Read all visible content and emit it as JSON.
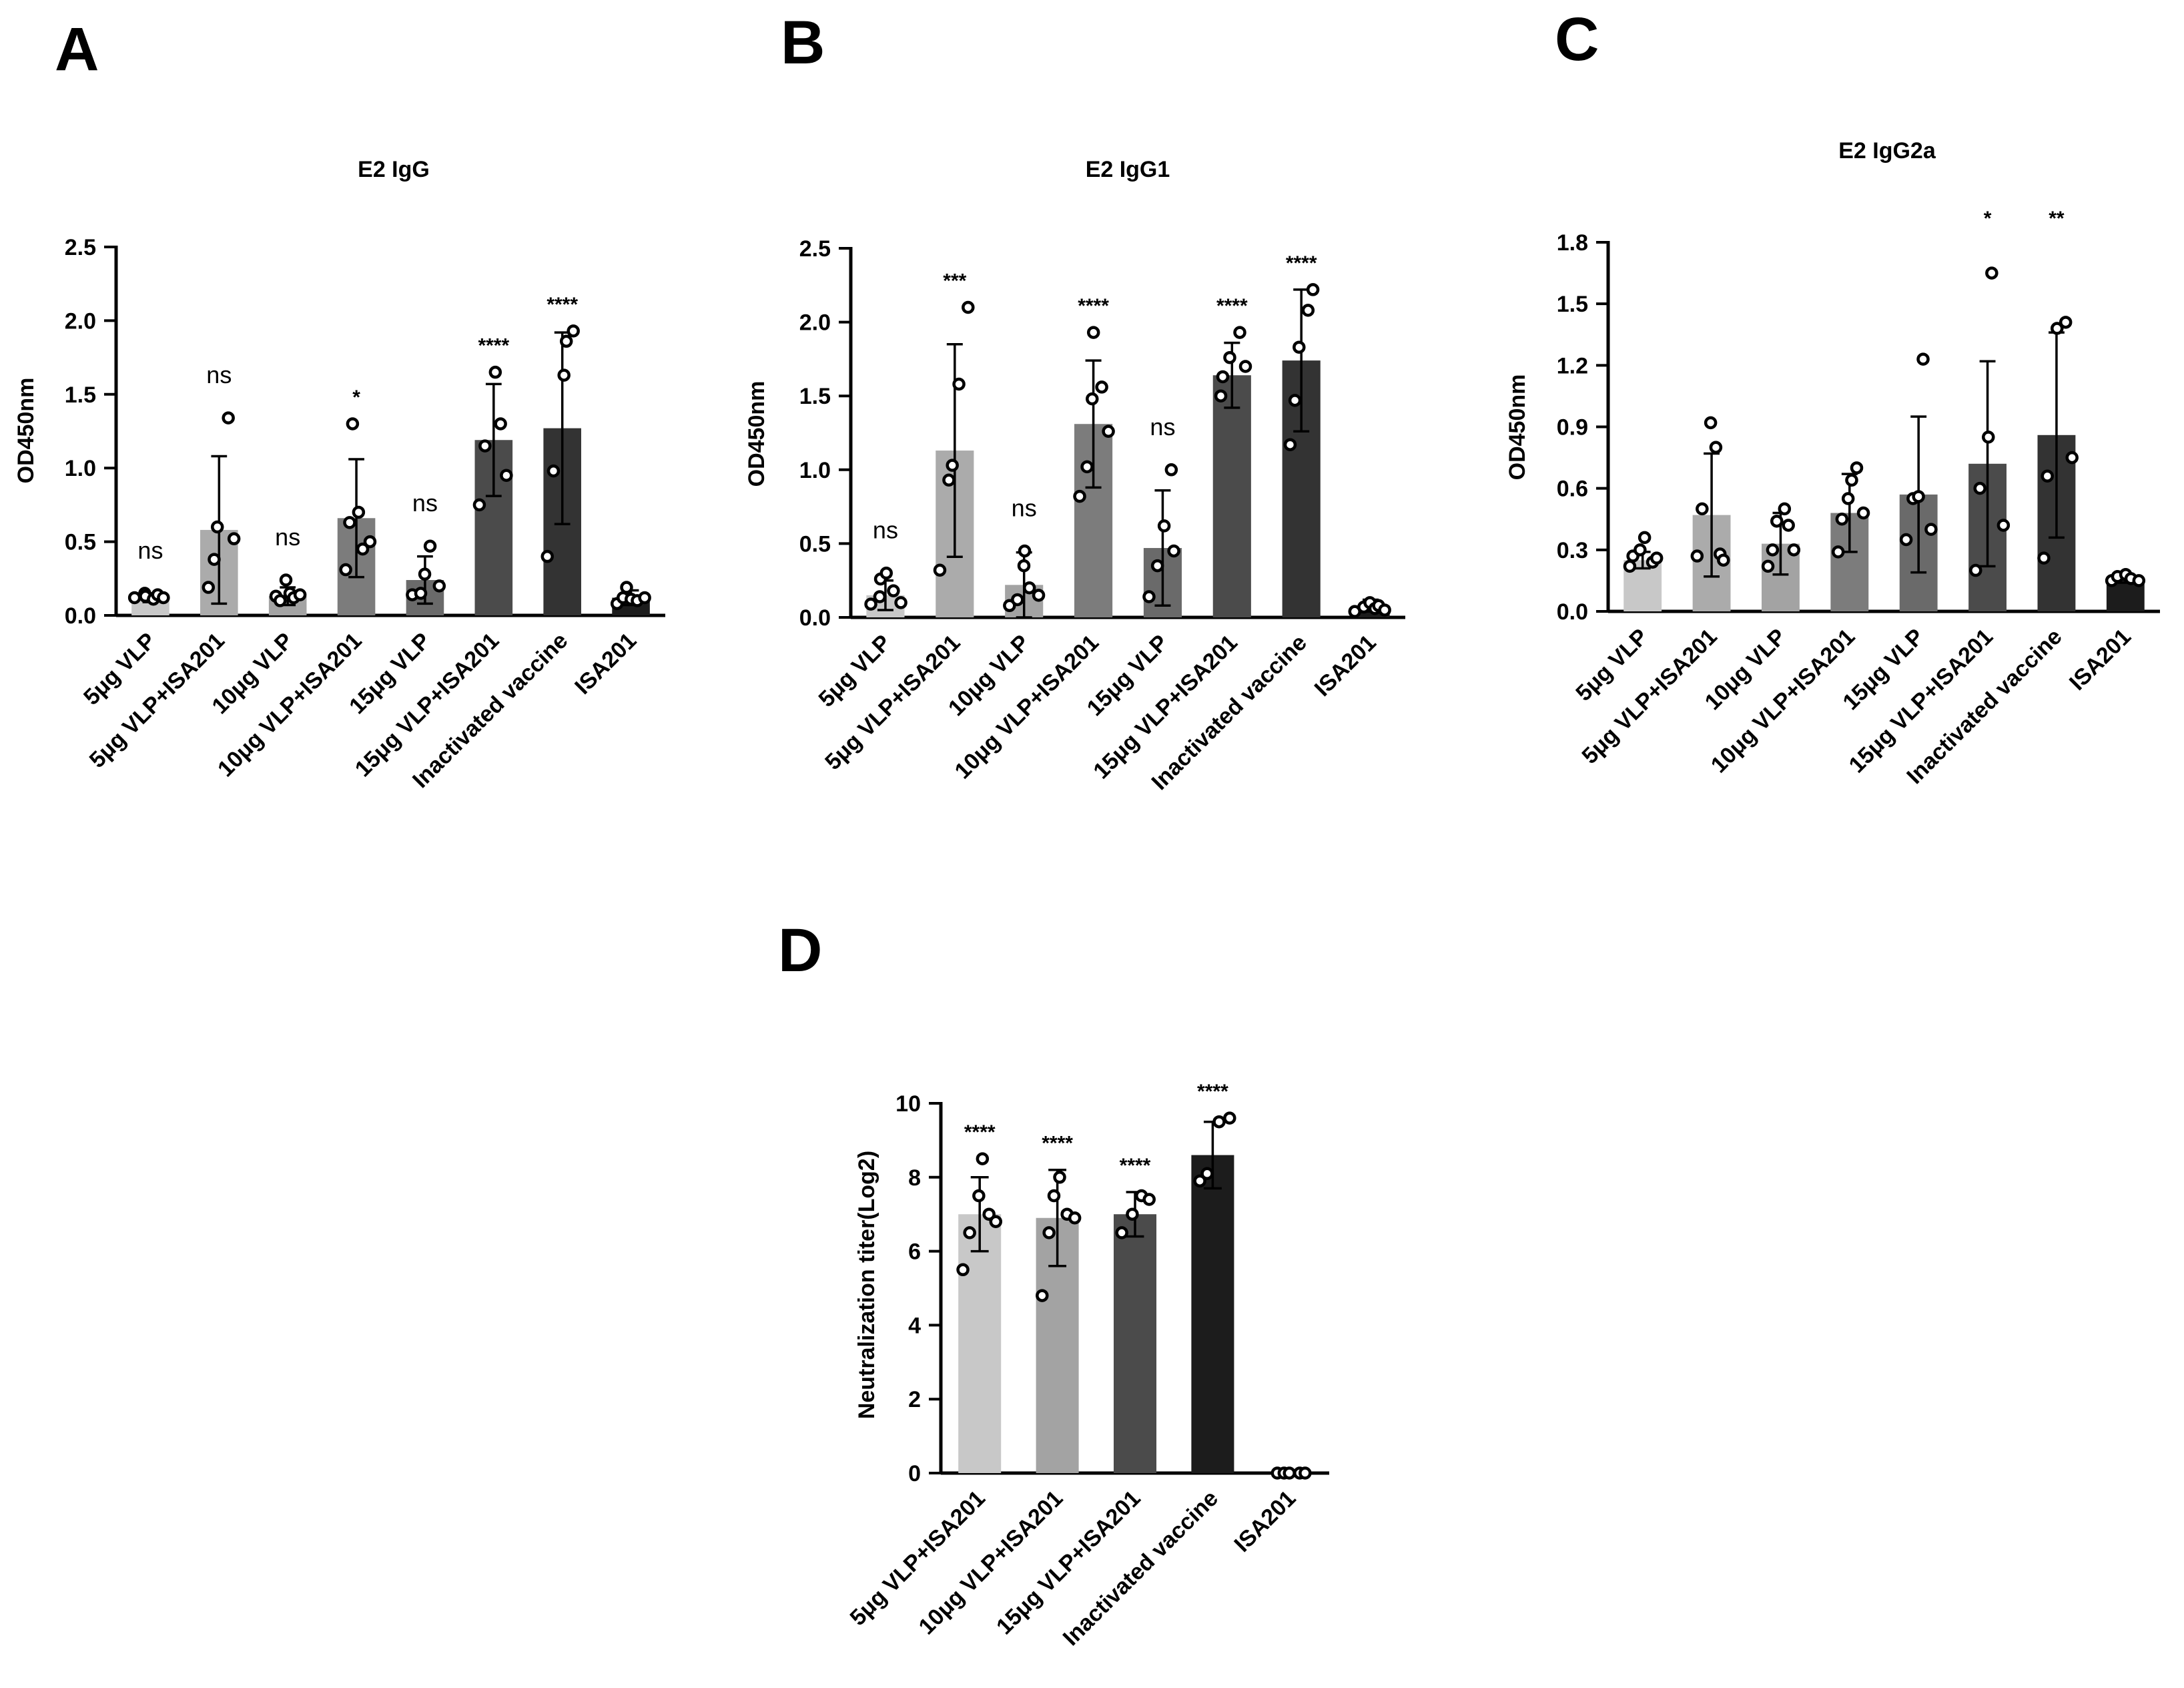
{
  "panels": [
    {
      "id": "A",
      "letter": "A"
    },
    {
      "id": "B",
      "letter": "B"
    },
    {
      "id": "C",
      "letter": "C"
    },
    {
      "id": "D",
      "letter": "D"
    }
  ],
  "bar_colors": [
    "#c8c8c8",
    "#ababab",
    "#a3a3a3",
    "#7c7c7c",
    "#6a6a6a",
    "#4b4b4b",
    "#333333",
    "#1c1c1c"
  ],
  "chart_data": [
    {
      "panel": "A",
      "type": "bar",
      "title": "E2 IgG",
      "xlabel": "",
      "ylabel": "OD450nm",
      "ylim": [
        0,
        2.5
      ],
      "yticks": [
        0.0,
        0.5,
        1.0,
        1.5,
        2.0,
        2.5
      ],
      "ytick_labels": [
        "0.0",
        "0.5",
        "1.0",
        "1.5",
        "2.0",
        "2.5"
      ],
      "categories": [
        "5μg VLP",
        "5μg VLP+ISA201",
        "10μg VLP",
        "10μg VLP+ISA201",
        "15μg VLP",
        "15μg VLP+ISA201",
        "Inactivated vaccine",
        "ISA201"
      ],
      "values": [
        0.12,
        0.58,
        0.13,
        0.66,
        0.24,
        1.19,
        1.27,
        0.12
      ],
      "error": [
        0.03,
        0.5,
        0.06,
        0.4,
        0.16,
        0.38,
        0.65,
        0.05
      ],
      "points": [
        [
          0.12,
          0.15,
          0.13,
          0.11,
          0.14,
          0.12
        ],
        [
          0.19,
          0.38,
          0.6,
          1.34,
          0.52
        ],
        [
          0.13,
          0.1,
          0.24,
          0.15,
          0.12,
          0.14
        ],
        [
          0.31,
          0.63,
          1.3,
          0.7,
          0.45,
          0.5
        ],
        [
          0.14,
          0.15,
          0.28,
          0.47,
          0.2
        ],
        [
          0.75,
          1.15,
          1.65,
          1.3,
          0.95
        ],
        [
          0.4,
          0.98,
          1.63,
          1.86,
          1.93
        ],
        [
          0.08,
          0.12,
          0.19,
          0.11,
          0.1,
          0.12
        ]
      ],
      "significance": [
        "ns",
        "ns",
        "ns",
        "*",
        "ns",
        "****",
        "****",
        ""
      ]
    },
    {
      "panel": "B",
      "type": "bar",
      "title": "E2 IgG1",
      "xlabel": "",
      "ylabel": "OD450nm",
      "ylim": [
        0,
        2.5
      ],
      "yticks": [
        0.0,
        0.5,
        1.0,
        1.5,
        2.0,
        2.5
      ],
      "ytick_labels": [
        "0.0",
        "0.5",
        "1.0",
        "1.5",
        "2.0",
        "2.5"
      ],
      "categories": [
        "5μg VLP",
        "5μg VLP+ISA201",
        "10μg VLP",
        "10μg VLP+ISA201",
        "15μg VLP",
        "15μg VLP+ISA201",
        "Inactivated vaccine",
        "ISA201"
      ],
      "values": [
        0.15,
        1.13,
        0.22,
        1.31,
        0.47,
        1.64,
        1.74,
        0.08
      ],
      "error": [
        0.1,
        0.72,
        0.22,
        0.43,
        0.39,
        0.22,
        0.48,
        0.04
      ],
      "points": [
        [
          0.09,
          0.14,
          0.26,
          0.3,
          0.18,
          0.1
        ],
        [
          0.32,
          0.93,
          1.03,
          1.58,
          2.1
        ],
        [
          0.08,
          0.12,
          0.35,
          0.45,
          0.2,
          0.15
        ],
        [
          0.82,
          1.02,
          1.48,
          1.93,
          1.56,
          1.26
        ],
        [
          0.14,
          0.35,
          0.62,
          1.0,
          0.45
        ],
        [
          1.5,
          1.63,
          1.76,
          1.93,
          1.7
        ],
        [
          1.17,
          1.47,
          1.83,
          2.08,
          2.22
        ],
        [
          0.04,
          0.07,
          0.1,
          0.06,
          0.08,
          0.05
        ]
      ],
      "significance": [
        "ns",
        "***",
        "ns",
        "****",
        "ns",
        "****",
        "****",
        ""
      ]
    },
    {
      "panel": "C",
      "type": "bar",
      "title": "E2 IgG2a",
      "xlabel": "",
      "ylabel": "OD450nm",
      "ylim": [
        0,
        1.8
      ],
      "yticks": [
        0.0,
        0.3,
        0.6,
        0.9,
        1.2,
        1.5,
        1.8
      ],
      "ytick_labels": [
        "0.0",
        "0.3",
        "0.6",
        "0.9",
        "1.2",
        "1.5",
        "1.8"
      ],
      "categories": [
        "5μg VLP",
        "5μg VLP+ISA201",
        "10μg VLP",
        "10μg VLP+ISA201",
        "15μg VLP",
        "15μg VLP+ISA201",
        "Inactivated vaccine",
        "ISA201"
      ],
      "values": [
        0.25,
        0.47,
        0.33,
        0.48,
        0.57,
        0.72,
        0.86,
        0.16
      ],
      "error": [
        0.04,
        0.3,
        0.15,
        0.19,
        0.38,
        0.5,
        0.5,
        0.02
      ],
      "points": [
        [
          0.22,
          0.27,
          0.3,
          0.36,
          0.24,
          0.26
        ],
        [
          0.27,
          0.5,
          0.92,
          0.8,
          0.28,
          0.25
        ],
        [
          0.22,
          0.3,
          0.44,
          0.5,
          0.42,
          0.3
        ],
        [
          0.29,
          0.45,
          0.55,
          0.64,
          0.7,
          0.48
        ],
        [
          0.35,
          0.55,
          0.56,
          1.23,
          0.4
        ],
        [
          0.2,
          0.6,
          0.85,
          1.65,
          0.42
        ],
        [
          0.26,
          0.66,
          1.38,
          1.41,
          0.75
        ],
        [
          0.15,
          0.17,
          0.18,
          0.16,
          0.15
        ]
      ],
      "significance": [
        "",
        "",
        "",
        "",
        "",
        "*",
        "**",
        ""
      ]
    },
    {
      "panel": "D",
      "type": "bar",
      "title": "",
      "xlabel": "",
      "ylabel": "Neutralization titer(Log2)",
      "ylim": [
        0,
        10
      ],
      "yticks": [
        0,
        2,
        4,
        6,
        8,
        10
      ],
      "ytick_labels": [
        "0",
        "2",
        "4",
        "6",
        "8",
        "10"
      ],
      "categories": [
        "5μg VLP+ISA201",
        "10μg VLP+ISA201",
        "15μg VLP+ISA201",
        "Inactivated vaccine",
        "ISA201"
      ],
      "values": [
        7.0,
        6.9,
        7.0,
        8.6,
        0.0
      ],
      "error": [
        1.0,
        1.3,
        0.6,
        0.9,
        0.0
      ],
      "points": [
        [
          5.5,
          6.5,
          7.5,
          8.5,
          7.0,
          6.8
        ],
        [
          4.8,
          6.5,
          7.5,
          8.0,
          7.0,
          6.9
        ],
        [
          6.5,
          7.0,
          7.5,
          7.4
        ],
        [
          7.9,
          8.1,
          9.5,
          9.6
        ],
        [
          0,
          0,
          0,
          0,
          0
        ]
      ],
      "significance": [
        "****",
        "****",
        "****",
        "****",
        ""
      ]
    }
  ]
}
